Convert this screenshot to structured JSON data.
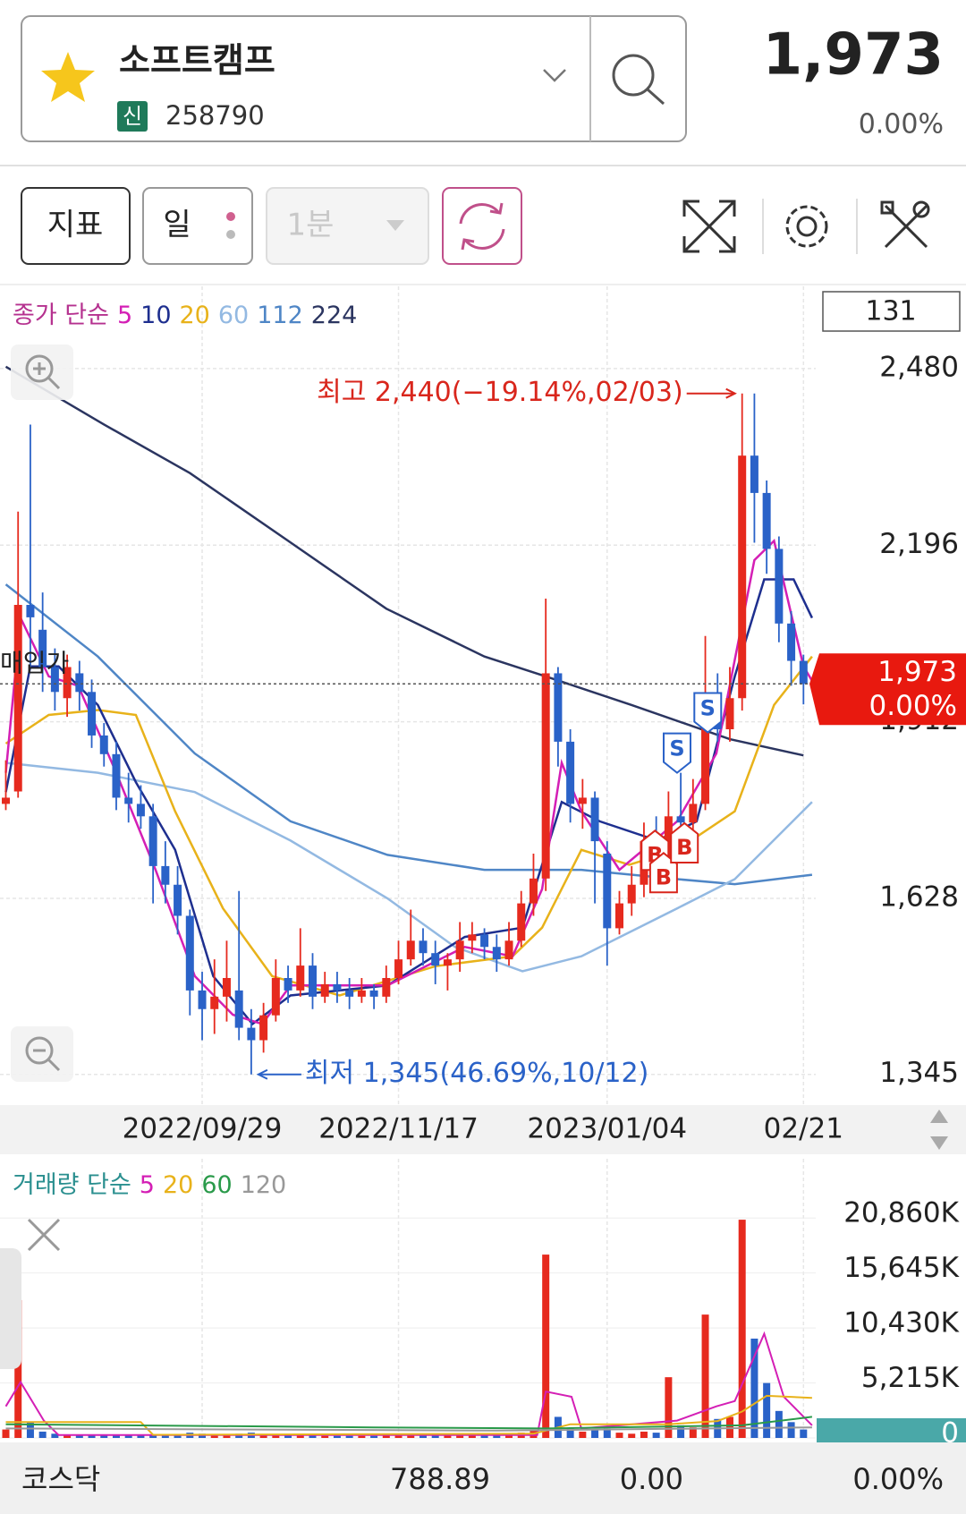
{
  "header": {
    "name": "소프트캠프",
    "badge": "신",
    "code": "258790",
    "price": "1,973",
    "change": "0.00%"
  },
  "toolbar": {
    "indicator": "지표",
    "period": "일",
    "interval": "1분"
  },
  "chart_data": {
    "type": "candlestick",
    "legend_prefix": "종가 단순",
    "count_box": 131,
    "reference_label": "매입가",
    "open": [
      1780,
      1800,
      2100,
      2060,
      2000,
      1950,
      1990,
      1960,
      1890,
      1860,
      1790,
      1780,
      1760,
      1680,
      1650,
      1600,
      1480,
      1450,
      1470,
      1480,
      1420,
      1400,
      1440,
      1500,
      1480,
      1520,
      1470,
      1490,
      1480,
      1470,
      1480,
      1470,
      1500,
      1530,
      1560,
      1540,
      1520,
      1530,
      1560,
      1570,
      1550,
      1530,
      1560,
      1620,
      1660,
      1990,
      1880,
      1780,
      1790,
      1700,
      1580,
      1620,
      1650,
      1720,
      1690,
      1760,
      1750,
      1780,
      1950,
      1900,
      1950,
      2340,
      2280,
      2190,
      2070,
      2010
    ],
    "high": [
      1850,
      2250,
      2390,
      2120,
      2030,
      2020,
      2010,
      1980,
      1910,
      1880,
      1830,
      1810,
      1780,
      1720,
      1680,
      1610,
      1510,
      1530,
      1560,
      1640,
      1450,
      1460,
      1530,
      1520,
      1580,
      1540,
      1510,
      1510,
      1500,
      1500,
      1490,
      1520,
      1560,
      1610,
      1580,
      1560,
      1540,
      1590,
      1590,
      1580,
      1570,
      1590,
      1640,
      1700,
      2110,
      2000,
      1900,
      1820,
      1800,
      1720,
      1640,
      1680,
      1750,
      1760,
      1800,
      1830,
      1820,
      2050,
      1990,
      2000,
      2440,
      2440,
      2300,
      2210,
      2090,
      2020
    ],
    "low": [
      1770,
      1790,
      2000,
      1960,
      1930,
      1920,
      1930,
      1870,
      1840,
      1770,
      1750,
      1740,
      1620,
      1620,
      1570,
      1440,
      1400,
      1410,
      1430,
      1400,
      1345,
      1380,
      1430,
      1460,
      1470,
      1450,
      1460,
      1460,
      1450,
      1460,
      1450,
      1460,
      1490,
      1520,
      1520,
      1490,
      1480,
      1510,
      1540,
      1530,
      1510,
      1520,
      1550,
      1600,
      1640,
      1840,
      1750,
      1740,
      1620,
      1520,
      1570,
      1600,
      1630,
      1670,
      1680,
      1720,
      1720,
      1770,
      1880,
      1880,
      1930,
      2200,
      2150,
      2040,
      1970,
      1940
    ],
    "close": [
      1790,
      2100,
      2080,
      2000,
      1960,
      2000,
      1960,
      1890,
      1860,
      1790,
      1780,
      1760,
      1680,
      1650,
      1600,
      1480,
      1450,
      1470,
      1500,
      1420,
      1400,
      1440,
      1500,
      1480,
      1520,
      1470,
      1490,
      1480,
      1470,
      1480,
      1470,
      1500,
      1530,
      1560,
      1540,
      1520,
      1530,
      1560,
      1570,
      1550,
      1530,
      1560,
      1620,
      1660,
      1990,
      1880,
      1780,
      1790,
      1720,
      1580,
      1620,
      1650,
      1720,
      1690,
      1760,
      1750,
      1780,
      1950,
      1900,
      1950,
      2340,
      2280,
      2190,
      2070,
      2010,
      1973
    ],
    "up_color": "#e62a1e",
    "down_color": "#2a62c8",
    "ylim": [
      1300,
      2600
    ],
    "yticks": [
      {
        "value": 1345,
        "label": "1,345"
      },
      {
        "value": 1628,
        "label": "1,628"
      },
      {
        "value": 1912,
        "label": "1,912"
      },
      {
        "value": 2196,
        "label": "2,196"
      },
      {
        "value": 2480,
        "label": "2,480"
      }
    ],
    "xticks": [
      {
        "value": 16,
        "label": "2022/09/29"
      },
      {
        "value": 32,
        "label": "2022/11/17"
      },
      {
        "value": 49,
        "label": "2023/01/04"
      },
      {
        "value": 65,
        "label": "02/21"
      }
    ],
    "current": {
      "value": 1973,
      "label": "1,973",
      "change": "0.00%"
    },
    "moving_averages": [
      {
        "name": "5",
        "color": "#d41fb5",
        "x": [
          0,
          1.2,
          3.5,
          5.9,
          9,
          12.2,
          15.4,
          18.5,
          20.9,
          23.2,
          31.1,
          37.4,
          41.3,
          43.7,
          45.3,
          46.9,
          50,
          54.7,
          57.9,
          61,
          62.6,
          65,
          65.7
        ],
        "values": [
          1830,
          2079,
          1985,
          1970,
          1830,
          1674,
          1503,
          1441,
          1426,
          1488,
          1488,
          1550,
          1535,
          1643,
          1846,
          1768,
          1674,
          1752,
          1861,
          2172,
          2203,
          2001,
          1978
        ]
      },
      {
        "name": "10",
        "color": "#1e2f8f",
        "x": [
          0,
          2,
          4.3,
          7.5,
          10.6,
          13.8,
          16.9,
          20.1,
          23.2,
          31.1,
          37.4,
          42.1,
          45.3,
          48.4,
          53.1,
          56.3,
          59.4,
          61.8,
          64.2,
          65.7
        ],
        "values": [
          1799,
          2001,
          2001,
          1939,
          1815,
          1706,
          1503,
          1426,
          1472,
          1488,
          1566,
          1581,
          1783,
          1752,
          1721,
          1752,
          1985,
          2141,
          2141,
          2079
        ]
      },
      {
        "name": "20",
        "color": "#e8b21a",
        "x": [
          0,
          3.5,
          7.5,
          10.6,
          13.8,
          17.7,
          21.7,
          27.2,
          35,
          41.3,
          43.7,
          46.9,
          50.8,
          54.7,
          59.4,
          62.6,
          65.7
        ],
        "values": [
          1877,
          1923,
          1931,
          1923,
          1768,
          1612,
          1503,
          1472,
          1519,
          1535,
          1581,
          1706,
          1682,
          1706,
          1768,
          1939,
          2017
        ]
      },
      {
        "name": "60",
        "color": "#93b9e2",
        "x": [
          0,
          7.5,
          15.4,
          23.2,
          31.1,
          36.6,
          42.1,
          46.9,
          54.7,
          59.4,
          65.7
        ],
        "values": [
          1846,
          1830,
          1799,
          1721,
          1628,
          1550,
          1511,
          1535,
          1612,
          1659,
          1783
        ]
      },
      {
        "name": "112",
        "color": "#4f86c6",
        "x": [
          0,
          7.5,
          15.4,
          23.2,
          31.1,
          39,
          46.9,
          54.7,
          59.4,
          65.7
        ],
        "values": [
          2133,
          2017,
          1861,
          1752,
          1698,
          1674,
          1674,
          1659,
          1651,
          1666
        ]
      },
      {
        "name": "224",
        "color": "#2b3560",
        "x": [
          0,
          8,
          15,
          23,
          31,
          39,
          44,
          51,
          59,
          65
        ],
        "values": [
          2483,
          2390,
          2312,
          2203,
          2094,
          2017,
          1985,
          1939,
          1884,
          1858
        ]
      }
    ],
    "annotations": [
      {
        "text": "최고 2,440(−19.14%,02/03)",
        "x": 60,
        "price": 2440,
        "color": "#d9261c"
      },
      {
        "text": "최저 1,345(46.69%,10/12)",
        "x": 20,
        "price": 1345,
        "color": "#2a62c8"
      }
    ],
    "signals": [
      {
        "label": "S",
        "x": 54.7,
        "price": 1830
      },
      {
        "label": "S",
        "x": 57.2,
        "price": 1895
      },
      {
        "label": "B",
        "x": 52.9,
        "price": 1737
      },
      {
        "label": "B",
        "x": 53.6,
        "price": 1701
      },
      {
        "label": "B",
        "x": 55.3,
        "price": 1749
      }
    ],
    "volume": {
      "legend_prefix": "거래량 단순",
      "values": [
        800,
        13080,
        1500,
        600,
        400,
        300,
        300,
        300,
        250,
        300,
        250,
        250,
        300,
        300,
        300,
        500,
        400,
        300,
        300,
        400,
        500,
        300,
        300,
        250,
        300,
        250,
        200,
        200,
        200,
        200,
        200,
        250,
        300,
        400,
        300,
        250,
        250,
        300,
        300,
        250,
        250,
        300,
        500,
        800,
        17390,
        2000,
        1000,
        600,
        800,
        900,
        500,
        400,
        600,
        500,
        5760,
        1200,
        1000,
        11700,
        1800,
        2000,
        20700,
        9420,
        5210,
        2560,
        1500,
        800
      ],
      "ylim": [
        0,
        23000
      ],
      "yticks": [
        0,
        {
          "value": 5215,
          "label": "5,215K"
        },
        {
          "value": 10430,
          "label": "10,430K"
        },
        {
          "value": 15645,
          "label": "15,645K"
        },
        {
          "value": 20860,
          "label": "20,860K"
        }
      ],
      "moving_averages": [
        {
          "name": "5",
          "color": "#d41fb5",
          "x": [
            0,
            1.2,
            3.1,
            4.3,
            43.3,
            44,
            46.1,
            46.9,
            54.7,
            57.9,
            59.4,
            61.8,
            63.4,
            65.7
          ],
          "values": [
            3000,
            5300,
            1650,
            270,
            270,
            4400,
            3900,
            900,
            1650,
            3000,
            3500,
            9880,
            3900,
            1200
          ]
        },
        {
          "name": "20",
          "color": "#e8b21a",
          "x": [
            0,
            11,
            12,
            43,
            46,
            54,
            58,
            60,
            62,
            65.7
          ],
          "values": [
            1500,
            1500,
            300,
            400,
            1300,
            1300,
            1600,
            2500,
            4000,
            3800
          ]
        },
        {
          "name": "60",
          "color": "#2a9a4a",
          "x": [
            0,
            30,
            44,
            60,
            65.7
          ],
          "values": [
            1300,
            1000,
            900,
            1200,
            2000
          ]
        },
        {
          "name": "120",
          "color": "#999999",
          "x": [
            0,
            40,
            65.7
          ],
          "values": [
            900,
            700,
            1000
          ]
        }
      ]
    }
  },
  "footer": {
    "market": "코스닥",
    "index": "788.89",
    "change": "0.00",
    "rate": "0.00%"
  }
}
